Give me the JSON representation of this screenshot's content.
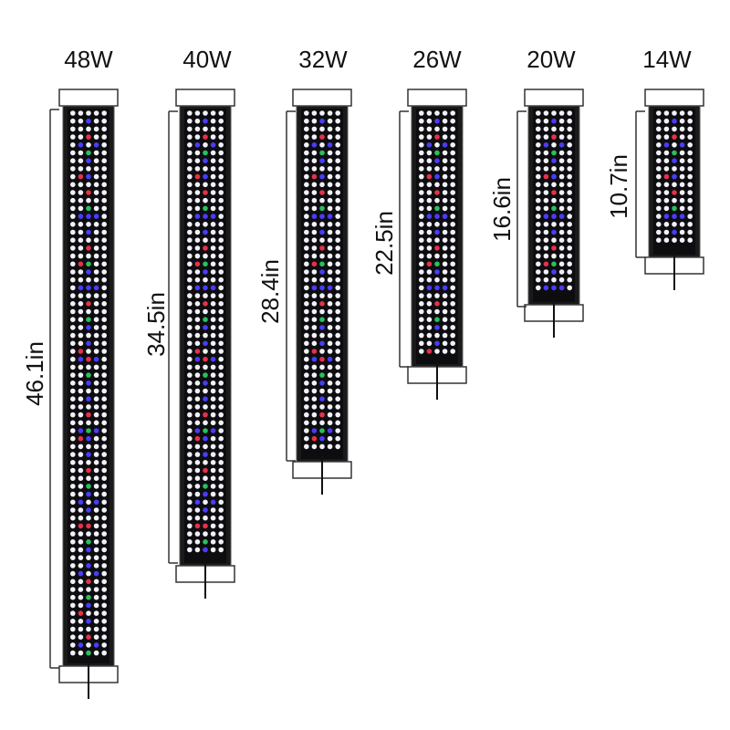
{
  "colors": {
    "housing": "#1a1a1a",
    "panel": "#0d0d0f",
    "led_white": "#f1f0f8",
    "led_blue": "#4a3cff",
    "led_red": "#e8304a",
    "led_green": "#28c060",
    "line": "#333333"
  },
  "lights": [
    {
      "wattage": "48W",
      "length": "46.1in"
    },
    {
      "wattage": "40W",
      "length": "34.5in"
    },
    {
      "wattage": "32W",
      "length": "28.4in"
    },
    {
      "wattage": "26W",
      "length": "22.5in"
    },
    {
      "wattage": "20W",
      "length": "16.6in"
    },
    {
      "wattage": "14W",
      "length": "10.7in"
    }
  ]
}
